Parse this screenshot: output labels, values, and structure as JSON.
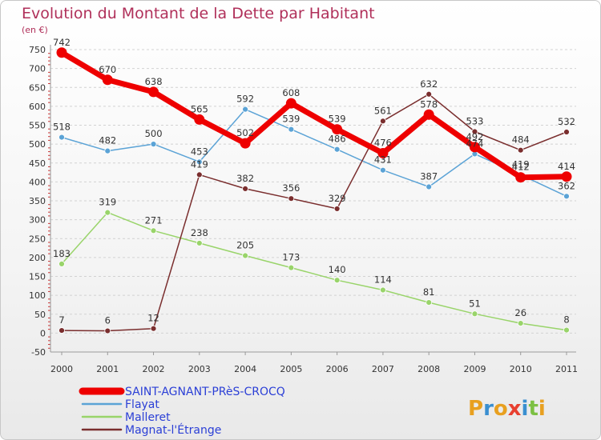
{
  "chart_data": {
    "type": "line",
    "title": "Evolution du Montant de la Dette par Habitant",
    "unit_label": "(en €)",
    "x": [
      "2000",
      "2001",
      "2002",
      "2003",
      "2004",
      "2005",
      "2006",
      "2007",
      "2008",
      "2009",
      "2010",
      "2011"
    ],
    "ylim": [
      -50,
      750
    ],
    "yticks": [
      -50,
      0,
      50,
      100,
      150,
      200,
      250,
      300,
      350,
      400,
      450,
      500,
      550,
      600,
      650,
      700,
      750
    ],
    "grid": "horizontal-dashed",
    "legend_position": "bottom-left",
    "series": [
      {
        "name": "SAINT-AGNANT-PRèS-CROCQ",
        "color": "#ee0000",
        "width": 7,
        "radius": 6.5,
        "values": [
          742,
          670,
          638,
          565,
          502,
          608,
          539,
          476,
          578,
          492,
          412,
          414
        ]
      },
      {
        "name": "Flayat",
        "color": "#5ba3d6",
        "width": 1.5,
        "radius": 3.5,
        "values": [
          518,
          482,
          500,
          453,
          592,
          539,
          486,
          431,
          387,
          474,
          419,
          362
        ]
      },
      {
        "name": "Malleret",
        "color": "#99d46a",
        "width": 1.5,
        "radius": 3.5,
        "values": [
          183,
          319,
          271,
          238,
          205,
          173,
          140,
          114,
          81,
          51,
          26,
          8
        ]
      },
      {
        "name": "Magnat-l'Étrange",
        "color": "#7a2e2e",
        "width": 1.5,
        "radius": 3.5,
        "values": [
          7,
          6,
          12,
          419,
          382,
          356,
          329,
          561,
          632,
          533,
          484,
          532
        ]
      }
    ]
  },
  "branding": {
    "logo_text": "Proxiti",
    "logo_letters": [
      "P",
      "r",
      "o",
      "x",
      "i",
      "t",
      "i"
    ],
    "logo_colors": [
      "#e8a020",
      "#3a8fd0",
      "#e8a020",
      "#e84030",
      "#3a8fd0",
      "#7cc043",
      "#e8a020"
    ]
  }
}
